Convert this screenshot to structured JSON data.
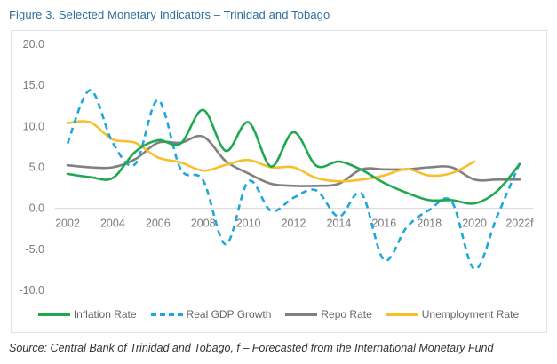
{
  "figure": {
    "title": "Figure 3. Selected Monetary Indicators – Trinidad and Tobago",
    "source": "Source: Central Bank of Trinidad and Tobago, f – Forecasted from the International Monetary Fund"
  },
  "chart_data": {
    "type": "line",
    "title": "Figure 3. Selected Monetary Indicators – Trinidad and Tobago",
    "xlabel": "",
    "ylabel": "",
    "ylim": [
      -10,
      20
    ],
    "yticks": [
      "20.0",
      "15.0",
      "10.0",
      "5.0",
      "0.0",
      "-5.0",
      "-10.0"
    ],
    "ytick_values": [
      20,
      15,
      10,
      5,
      0,
      -5,
      -10
    ],
    "x": [
      2002,
      2003,
      2004,
      2005,
      2006,
      2007,
      2008,
      2009,
      2010,
      2011,
      2012,
      2013,
      2014,
      2015,
      2016,
      2017,
      2018,
      2019,
      2020,
      2021,
      2022
    ],
    "xticks": [
      "2002",
      "2004",
      "2006",
      "2008",
      "2010",
      "2012",
      "2014",
      "2016",
      "2018",
      "2020",
      "2022f"
    ],
    "xtick_values": [
      2002,
      2004,
      2006,
      2008,
      2010,
      2012,
      2014,
      2016,
      2018,
      2020,
      2022
    ],
    "grid": "zero-line only",
    "legend_position": "bottom",
    "smoothed": true,
    "series": [
      {
        "name": "Inflation Rate",
        "color": "#1fa84f",
        "dash": false,
        "values": [
          4.2,
          3.8,
          3.7,
          6.9,
          8.3,
          7.9,
          12.0,
          7.0,
          10.5,
          5.1,
          9.3,
          5.2,
          5.7,
          4.7,
          3.1,
          1.9,
          1.0,
          1.0,
          0.6,
          2.1,
          5.4
        ]
      },
      {
        "name": "Real GDP Growth",
        "color": "#1ea7dd",
        "dash": true,
        "values": [
          7.9,
          14.4,
          8.0,
          5.4,
          13.2,
          4.8,
          3.4,
          -4.4,
          3.3,
          -0.3,
          1.3,
          2.2,
          -1.0,
          1.8,
          -6.3,
          -2.3,
          -0.2,
          0.8,
          -7.4,
          -1.0,
          5.5
        ]
      },
      {
        "name": "Repo Rate",
        "color": "#808080",
        "dash": false,
        "values": [
          5.25,
          5.0,
          5.0,
          6.0,
          8.0,
          8.0,
          8.75,
          5.75,
          4.25,
          3.0,
          2.75,
          2.75,
          3.0,
          4.75,
          4.75,
          4.75,
          5.0,
          5.0,
          3.5,
          3.5,
          3.5
        ]
      },
      {
        "name": "Unemployment Rate",
        "color": "#f5c02c",
        "dash": false,
        "values": [
          10.4,
          10.5,
          8.4,
          8.0,
          6.2,
          5.6,
          4.6,
          5.3,
          5.9,
          5.0,
          5.0,
          3.7,
          3.3,
          3.5,
          4.0,
          4.8,
          4.0,
          4.3,
          5.7,
          null,
          null
        ]
      }
    ]
  },
  "legend": {
    "items": [
      {
        "label": "Inflation Rate",
        "color": "#1fa84f",
        "dash": false
      },
      {
        "label": "Real GDP Growth",
        "color": "#1ea7dd",
        "dash": true
      },
      {
        "label": "Repo Rate",
        "color": "#808080",
        "dash": false
      },
      {
        "label": "Unemployment Rate",
        "color": "#f5c02c",
        "dash": false
      }
    ]
  }
}
